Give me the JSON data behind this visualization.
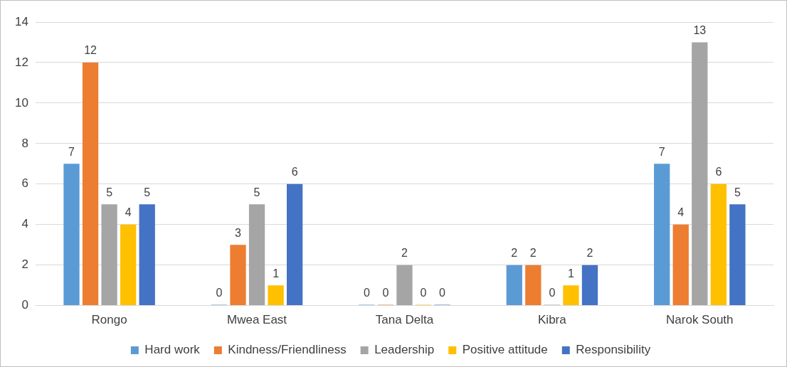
{
  "chart_data": {
    "type": "bar",
    "categories": [
      "Rongo",
      "Mwea East",
      "Tana Delta",
      "Kibra",
      "Narok South"
    ],
    "series": [
      {
        "name": "Hard work",
        "color": "#5b9bd5",
        "values": [
          7,
          0,
          0,
          2,
          7
        ]
      },
      {
        "name": "Kindness/Friendliness",
        "color": "#ed7d31",
        "values": [
          12,
          3,
          0,
          2,
          4
        ]
      },
      {
        "name": "Leadership",
        "color": "#a5a5a5",
        "values": [
          5,
          5,
          2,
          0,
          13
        ]
      },
      {
        "name": "Positive attitude",
        "color": "#ffc000",
        "values": [
          4,
          1,
          0,
          1,
          6
        ]
      },
      {
        "name": "Responsibility",
        "color": "#4472c4",
        "values": [
          5,
          6,
          0,
          2,
          5
        ]
      }
    ],
    "ylim": [
      0,
      14
    ],
    "yticks": [
      0,
      2,
      4,
      6,
      8,
      10,
      12,
      14
    ],
    "grid": "y",
    "legend": "bottom",
    "data_labels": true
  }
}
